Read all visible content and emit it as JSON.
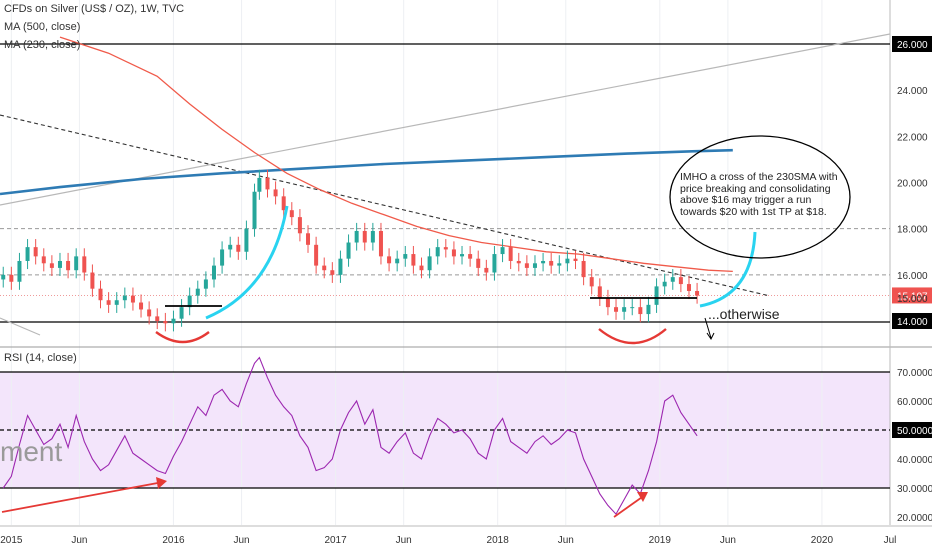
{
  "legend": {
    "title": "CFDs on Silver (US$ / OZ), 1W, TVC",
    "ma500": "MA (500, close)",
    "ma230": "MA (230, close)",
    "rsi": "RSI (14, close)"
  },
  "annotation": {
    "note": "IMHO a cross of the 230SMA with price breaking and consolidating above $16 may trigger a run towards $20 with 1st TP at $18.",
    "otherwise": "...otherwise",
    "watermark": "ment"
  },
  "colors": {
    "up": "#26a69a",
    "down": "#ef5350",
    "ma500": "#2e7bb4",
    "ma230": "#f05a4a",
    "rsi": "#9c27b0",
    "rsi_band": "#f3e5fb",
    "cyan": "#29d3f0",
    "arrow_red": "#e53935",
    "price_tag": "#ef5350"
  },
  "chart_data": [
    {
      "type": "candlestick",
      "title": "CFDs on Silver (US$ / OZ), 1W, TVC",
      "y_axis": {
        "ticks": [
          14,
          15,
          16,
          18,
          20,
          22,
          24,
          26
        ],
        "range": [
          13.4,
          26.6
        ]
      },
      "x_axis": {
        "ticks": [
          "2015",
          "Jun",
          "2016",
          "Jun",
          "2017",
          "Jun",
          "2018",
          "Jun",
          "2019",
          "Jun",
          "2020",
          "Jul"
        ],
        "range": [
          2014.93,
          2020.42
        ]
      },
      "last_price": 15.107,
      "series": [
        {
          "name": "MA (500, close)",
          "points": [
            [
              2014.93,
              19.5
            ],
            [
              2015.3,
              19.8
            ],
            [
              2015.8,
              20.15
            ],
            [
              2016.3,
              20.4
            ],
            [
              2016.8,
              20.6
            ],
            [
              2017.3,
              20.8
            ],
            [
              2017.8,
              20.95
            ],
            [
              2018.3,
              21.1
            ],
            [
              2018.8,
              21.25
            ],
            [
              2019.2,
              21.35
            ],
            [
              2019.45,
              21.4
            ]
          ]
        },
        {
          "name": "MA (230, close)",
          "points": [
            [
              2015.3,
              26.3
            ],
            [
              2015.6,
              25.6
            ],
            [
              2015.9,
              24.6
            ],
            [
              2016.1,
              23.4
            ],
            [
              2016.3,
              22.3
            ],
            [
              2016.5,
              21.3
            ],
            [
              2016.7,
              20.4
            ],
            [
              2016.9,
              19.7
            ],
            [
              2017.1,
              19.1
            ],
            [
              2017.3,
              18.6
            ],
            [
              2017.5,
              18.1
            ],
            [
              2017.7,
              17.7
            ],
            [
              2017.9,
              17.4
            ],
            [
              2018.1,
              17.2
            ],
            [
              2018.3,
              17.0
            ],
            [
              2018.5,
              16.9
            ],
            [
              2018.7,
              16.7
            ],
            [
              2018.9,
              16.5
            ],
            [
              2019.1,
              16.35
            ],
            [
              2019.3,
              16.2
            ],
            [
              2019.45,
              16.15
            ]
          ]
        }
      ],
      "candle_closes": [
        [
          2014.95,
          16.0
        ],
        [
          2015.0,
          15.7
        ],
        [
          2015.05,
          16.6
        ],
        [
          2015.1,
          17.2
        ],
        [
          2015.15,
          16.8
        ],
        [
          2015.2,
          16.5
        ],
        [
          2015.25,
          16.3
        ],
        [
          2015.3,
          16.6
        ],
        [
          2015.35,
          16.2
        ],
        [
          2015.4,
          16.8
        ],
        [
          2015.45,
          16.1
        ],
        [
          2015.5,
          15.4
        ],
        [
          2015.55,
          14.9
        ],
        [
          2015.6,
          14.7
        ],
        [
          2015.65,
          14.9
        ],
        [
          2015.7,
          15.1
        ],
        [
          2015.75,
          14.8
        ],
        [
          2015.8,
          14.5
        ],
        [
          2015.85,
          14.2
        ],
        [
          2015.9,
          14.0
        ],
        [
          2015.95,
          13.9
        ],
        [
          2016.0,
          14.1
        ],
        [
          2016.05,
          14.6
        ],
        [
          2016.1,
          15.1
        ],
        [
          2016.15,
          15.4
        ],
        [
          2016.2,
          15.8
        ],
        [
          2016.25,
          16.4
        ],
        [
          2016.3,
          17.1
        ],
        [
          2016.35,
          17.3
        ],
        [
          2016.4,
          17.0
        ],
        [
          2016.45,
          18.0
        ],
        [
          2016.5,
          19.6
        ],
        [
          2016.53,
          20.2
        ],
        [
          2016.58,
          19.7
        ],
        [
          2016.63,
          19.4
        ],
        [
          2016.68,
          18.8
        ],
        [
          2016.73,
          18.5
        ],
        [
          2016.78,
          17.8
        ],
        [
          2016.83,
          17.3
        ],
        [
          2016.88,
          16.4
        ],
        [
          2016.93,
          16.2
        ],
        [
          2016.98,
          16.0
        ],
        [
          2017.03,
          16.7
        ],
        [
          2017.08,
          17.4
        ],
        [
          2017.13,
          17.9
        ],
        [
          2017.18,
          17.4
        ],
        [
          2017.23,
          17.9
        ],
        [
          2017.28,
          16.8
        ],
        [
          2017.33,
          16.5
        ],
        [
          2017.38,
          16.7
        ],
        [
          2017.43,
          16.9
        ],
        [
          2017.48,
          16.4
        ],
        [
          2017.53,
          16.2
        ],
        [
          2017.58,
          16.8
        ],
        [
          2017.63,
          17.2
        ],
        [
          2017.68,
          17.1
        ],
        [
          2017.73,
          16.8
        ],
        [
          2017.78,
          16.9
        ],
        [
          2017.83,
          16.7
        ],
        [
          2017.88,
          16.3
        ],
        [
          2017.93,
          16.1
        ],
        [
          2017.98,
          16.9
        ],
        [
          2018.03,
          17.2
        ],
        [
          2018.08,
          16.6
        ],
        [
          2018.13,
          16.5
        ],
        [
          2018.18,
          16.3
        ],
        [
          2018.23,
          16.5
        ],
        [
          2018.28,
          16.6
        ],
        [
          2018.33,
          16.4
        ],
        [
          2018.38,
          16.5
        ],
        [
          2018.43,
          16.7
        ],
        [
          2018.48,
          16.6
        ],
        [
          2018.53,
          15.9
        ],
        [
          2018.58,
          15.5
        ],
        [
          2018.63,
          15.0
        ],
        [
          2018.68,
          14.6
        ],
        [
          2018.73,
          14.4
        ],
        [
          2018.78,
          14.6
        ],
        [
          2018.83,
          14.6
        ],
        [
          2018.88,
          14.3
        ],
        [
          2018.93,
          14.7
        ],
        [
          2018.98,
          15.5
        ],
        [
          2019.03,
          15.7
        ],
        [
          2019.08,
          15.9
        ],
        [
          2019.13,
          15.6
        ],
        [
          2019.18,
          15.3
        ],
        [
          2019.23,
          15.1
        ]
      ],
      "lines": [
        {
          "name": "resistance",
          "value": 26.0
        },
        {
          "name": "target",
          "value": 18.0
        },
        {
          "name": "level 16",
          "value": 16.0
        },
        {
          "name": "support",
          "value": 14.0
        }
      ]
    },
    {
      "type": "line",
      "title": "RSI (14, close)",
      "y_axis": {
        "ticks": [
          20,
          30,
          40,
          50,
          60,
          70
        ],
        "range": [
          18,
          78
        ]
      },
      "levels": [
        30,
        50,
        70
      ],
      "last_value": 50.0,
      "series": [
        {
          "name": "RSI (14, close)",
          "points": [
            [
              2014.95,
              30
            ],
            [
              2015.0,
              34
            ],
            [
              2015.05,
              45
            ],
            [
              2015.1,
              55
            ],
            [
              2015.15,
              50
            ],
            [
              2015.2,
              45
            ],
            [
              2015.25,
              47
            ],
            [
              2015.3,
              52
            ],
            [
              2015.35,
              44
            ],
            [
              2015.4,
              55
            ],
            [
              2015.45,
              46
            ],
            [
              2015.5,
              40
            ],
            [
              2015.55,
              36
            ],
            [
              2015.6,
              38
            ],
            [
              2015.65,
              43
            ],
            [
              2015.7,
              48
            ],
            [
              2015.75,
              42
            ],
            [
              2015.8,
              40
            ],
            [
              2015.85,
              38
            ],
            [
              2015.9,
              36
            ],
            [
              2015.95,
              35
            ],
            [
              2016.0,
              41
            ],
            [
              2016.05,
              46
            ],
            [
              2016.1,
              52
            ],
            [
              2016.15,
              58
            ],
            [
              2016.2,
              55
            ],
            [
              2016.25,
              62
            ],
            [
              2016.3,
              64
            ],
            [
              2016.35,
              60
            ],
            [
              2016.4,
              58
            ],
            [
              2016.45,
              66
            ],
            [
              2016.5,
              73
            ],
            [
              2016.53,
              75
            ],
            [
              2016.58,
              68
            ],
            [
              2016.63,
              62
            ],
            [
              2016.68,
              58
            ],
            [
              2016.73,
              55
            ],
            [
              2016.78,
              48
            ],
            [
              2016.83,
              44
            ],
            [
              2016.88,
              36
            ],
            [
              2016.93,
              37
            ],
            [
              2016.98,
              40
            ],
            [
              2017.03,
              50
            ],
            [
              2017.08,
              56
            ],
            [
              2017.13,
              60
            ],
            [
              2017.18,
              52
            ],
            [
              2017.23,
              57
            ],
            [
              2017.28,
              44
            ],
            [
              2017.33,
              42
            ],
            [
              2017.38,
              46
            ],
            [
              2017.43,
              49
            ],
            [
              2017.48,
              42
            ],
            [
              2017.53,
              40
            ],
            [
              2017.58,
              48
            ],
            [
              2017.63,
              54
            ],
            [
              2017.68,
              52
            ],
            [
              2017.73,
              49
            ],
            [
              2017.78,
              50
            ],
            [
              2017.83,
              47
            ],
            [
              2017.88,
              42
            ],
            [
              2017.93,
              40
            ],
            [
              2017.98,
              50
            ],
            [
              2018.03,
              54
            ],
            [
              2018.08,
              46
            ],
            [
              2018.13,
              44
            ],
            [
              2018.18,
              42
            ],
            [
              2018.23,
              46
            ],
            [
              2018.28,
              48
            ],
            [
              2018.33,
              45
            ],
            [
              2018.38,
              47
            ],
            [
              2018.43,
              50
            ],
            [
              2018.48,
              49
            ],
            [
              2018.53,
              40
            ],
            [
              2018.58,
              34
            ],
            [
              2018.63,
              28
            ],
            [
              2018.68,
              24
            ],
            [
              2018.73,
              21
            ],
            [
              2018.78,
              26
            ],
            [
              2018.83,
              31
            ],
            [
              2018.88,
              28
            ],
            [
              2018.93,
              36
            ],
            [
              2018.98,
              46
            ],
            [
              2019.03,
              60
            ],
            [
              2019.08,
              62
            ],
            [
              2019.13,
              56
            ],
            [
              2019.18,
              52
            ],
            [
              2019.23,
              48
            ]
          ]
        }
      ]
    }
  ],
  "axis": {
    "price_ticks": [
      "26.000",
      "24.000",
      "22.000",
      "20.000",
      "18.000",
      "16.000",
      "15.107",
      "15.000",
      "14.000"
    ],
    "rsi_ticks": [
      "70.0000",
      "60.0000",
      "50.0000",
      "40.0000",
      "30.0000",
      "20.0000"
    ],
    "x_ticks": [
      "2015",
      "Jun",
      "2016",
      "Jun",
      "2017",
      "Jun",
      "2018",
      "Jun",
      "2019",
      "Jun",
      "2020",
      "Jul"
    ]
  }
}
